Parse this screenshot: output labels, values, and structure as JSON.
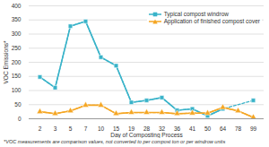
{
  "chart_data": {
    "type": "line",
    "x_label": "Day of Composting Process",
    "y_label": "VOC Emissions*",
    "note": "*VOC measurements are comparison values, not converted to per compost ton or per windrow units",
    "categories": [
      2,
      3,
      5,
      7,
      10,
      15,
      19,
      28,
      32,
      36,
      41,
      50,
      64,
      78,
      99
    ],
    "series": [
      {
        "name": "Typical compost windrow",
        "color": "#39b3c9",
        "marker": "square",
        "values": [
          148,
          110,
          328,
          345,
          218,
          188,
          58,
          65,
          75,
          30,
          35,
          10,
          35,
          null,
          65
        ]
      },
      {
        "name": "Application of finished compost cover",
        "color": "#f5a623",
        "marker": "triangle",
        "values": [
          25,
          18,
          28,
          48,
          48,
          18,
          22,
          22,
          22,
          18,
          20,
          20,
          40,
          28,
          5
        ]
      }
    ],
    "ylim": [
      0,
      400
    ],
    "yticks": [
      0,
      50,
      100,
      150,
      200,
      250,
      300,
      350,
      400
    ],
    "grid": true,
    "legend": "top-right"
  }
}
